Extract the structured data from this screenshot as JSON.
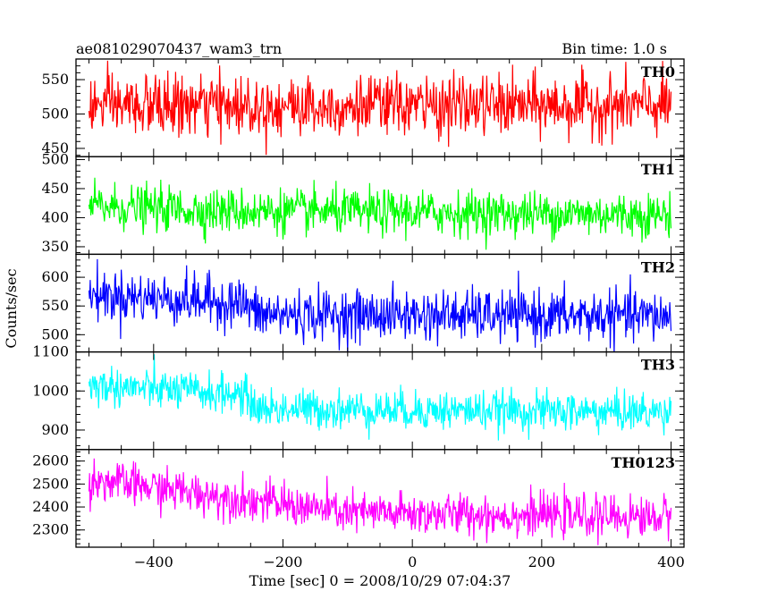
{
  "header": {
    "left_title": "ae081029070437_wam3_trn",
    "right_title": "Bin time: 1.0 s"
  },
  "chart_data": {
    "type": "line",
    "xlabel": "Time [sec] 0 = 2008/10/29 07:04:37",
    "ylabel": "Counts/sec",
    "xlim": [
      -520,
      420
    ],
    "x_ticks": [
      -400,
      -200,
      0,
      200,
      400
    ],
    "x_tick_labels": [
      "−400",
      "−200",
      "0",
      "200",
      "400"
    ],
    "x_range": [
      -500,
      400
    ],
    "bin_time": 1.0,
    "panels": [
      {
        "name": "TH0",
        "color": "#ff0000",
        "ylim": [
          438,
          580
        ],
        "y_ticks": [
          450,
          500,
          550
        ],
        "y_tick_labels": [
          "450",
          "500",
          "550"
        ],
        "trend": [
          [
            -500,
            512
          ],
          [
            400,
            512
          ]
        ],
        "noise_sd": 22
      },
      {
        "name": "TH1",
        "color": "#00ff00",
        "ylim": [
          337,
          505
        ],
        "y_ticks": [
          350,
          400,
          450,
          500
        ],
        "y_tick_labels": [
          "350",
          "400",
          "450",
          "500"
        ],
        "trend": [
          [
            -500,
            420
          ],
          [
            -300,
            412
          ],
          [
            400,
            405
          ]
        ],
        "noise_sd": 19
      },
      {
        "name": "TH2",
        "color": "#0000ff",
        "ylim": [
          470,
          640
        ],
        "y_ticks": [
          500,
          550,
          600
        ],
        "y_tick_labels": [
          "500",
          "550",
          "600"
        ],
        "trend": [
          [
            -500,
            570
          ],
          [
            -260,
            555
          ],
          [
            -240,
            535
          ],
          [
            400,
            532
          ]
        ],
        "noise_sd": 22
      },
      {
        "name": "TH3",
        "color": "#00ffff",
        "ylim": [
          850,
          1100
        ],
        "y_ticks": [
          900,
          1000,
          1100
        ],
        "y_tick_labels": [
          "900",
          "1000",
          "1100"
        ],
        "trend": [
          [
            -500,
            1015
          ],
          [
            -260,
            990
          ],
          [
            -240,
            955
          ],
          [
            400,
            945
          ]
        ],
        "noise_sd": 25
      },
      {
        "name": "TH0123",
        "color": "#ff00ff",
        "ylim": [
          2225,
          2650
        ],
        "y_ticks": [
          2300,
          2400,
          2500,
          2600
        ],
        "y_tick_labels": [
          "2300",
          "2400",
          "2500",
          "2600"
        ],
        "trend": [
          [
            -500,
            2520
          ],
          [
            -250,
            2430
          ],
          [
            -100,
            2375
          ],
          [
            400,
            2355
          ]
        ],
        "noise_sd": 45
      }
    ]
  }
}
